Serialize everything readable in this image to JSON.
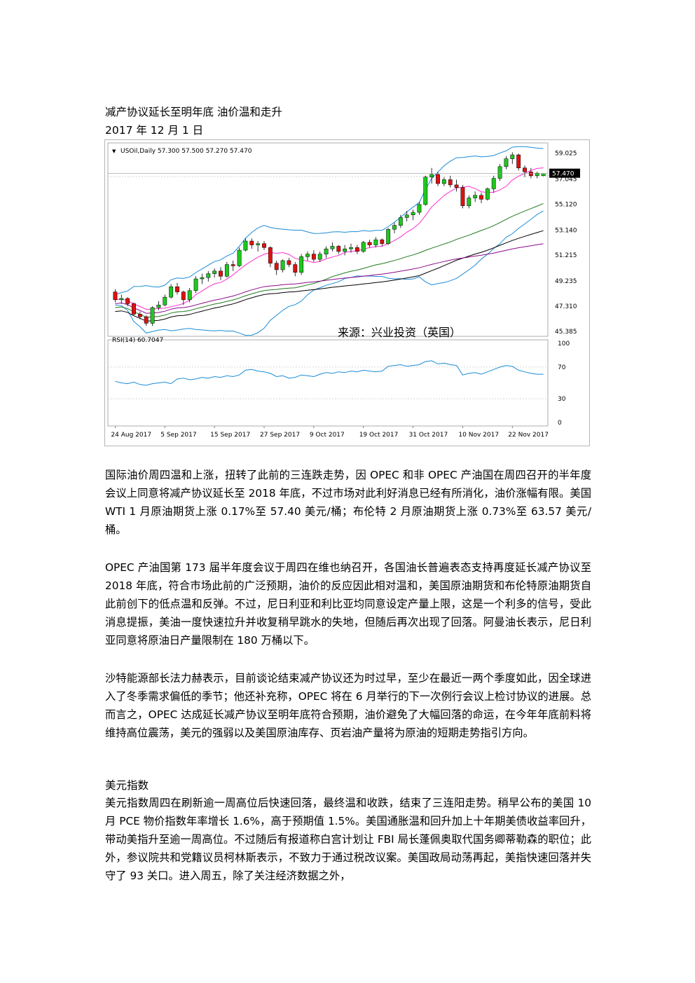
{
  "article": {
    "title": "减产协议延长至明年底  油价温和走升",
    "date": "2017 年 12 月 1 日",
    "paragraphs": [
      "国际油价周四温和上涨，扭转了此前的三连跌走势，因 OPEC 和非 OPEC 产油国在周四召开的半年度会议上同意将减产协议延长至 2018 年底，不过市场对此利好消息已经有所消化，油价涨幅有限。美国 WTI 1 月原油期货上涨 0.17%至 57.40 美元/桶；布伦特 2 月原油期货上涨 0.73%至 63.57 美元/桶。",
      "OPEC 产油国第 173 届半年度会议于周四在维也纳召开，各国油长普遍表态支持再度延长减产协议至 2018 年底，符合市场此前的广泛预期，油价的反应因此相对温和，美国原油期货和布伦特原油期货自此前创下的低点温和反弹。不过，尼日利亚和利比亚均同意设定产量上限，这是一个利多的信号，受此消息提振，美油一度快速拉升并收复稍早跳水的失地，但随后再次出现了回落。阿曼油长表示，尼日利亚同意将原油日产量限制在 180 万桶以下。",
      "沙特能源部长法力赫表示，目前谈论结束减产协议还为时过早，至少在最近一两个季度如此，因全球进入了冬季需求偏低的季节；他还补充称，OPEC 将在 6 月举行的下一次例行会议上检讨协议的进展。总而言之，OPEC 达成延长减产协议至明年底符合预期，油价避免了大幅回落的命运，在今年年底前料将维持高位震荡，美元的强弱以及美国原油库存、页岩油产量将为原油的短期走势指引方向。"
    ],
    "section2_title": "美元指数",
    "section2_paragraph": "美元指数周四在刷新逾一周高位后快速回落，最终温和收跌，结束了三连阳走势。稍早公布的美国 10 月 PCE 物价指数年率增长 1.6%，高于预期值 1.5%。美国通胀温和回升加上十年期美债收益率回升，带动美指升至逾一周高位。不过随后有报道称白宫计划让 FBI 局长蓬佩奥取代国务卿蒂勒森的职位；此外，参议院共和党籍议员柯林斯表示，不致力于通过税改议案。美国政局动荡再起，美指快速回落并失守了 93 关口。进入周五，除了关注经济数据之外，"
  },
  "chart_data": {
    "type": "candlestick",
    "symbol_label": "USOil,Daily  57.300 57.500 57.270 57.470",
    "current_price_label": "57.470",
    "watermark": "来源：兴业投资（英国）",
    "price_ticks": [
      "59.025",
      "57.045",
      "55.120",
      "53.140",
      "51.215",
      "49.235",
      "47.310",
      "45.385"
    ],
    "price_tick_values": [
      59.025,
      57.045,
      55.12,
      53.14,
      51.215,
      49.235,
      47.31,
      45.385
    ],
    "ylim": [
      45.0,
      59.6
    ],
    "x_labels": [
      "24 Aug 2017",
      "5 Sep 2017",
      "15 Sep 2017",
      "27 Sep 2017",
      "9 Oct 2017",
      "19 Oct 2017",
      "31 Oct 2017",
      "10 Nov 2017",
      "22 Nov 2017"
    ],
    "x_label_index": [
      0,
      8,
      16,
      24,
      32,
      40,
      48,
      56,
      64
    ],
    "candles": [
      [
        48.4,
        48.6,
        47.6,
        47.8
      ],
      [
        47.8,
        48.2,
        47.5,
        47.9
      ],
      [
        47.9,
        48.0,
        47.3,
        47.5
      ],
      [
        47.5,
        47.6,
        46.6,
        46.7
      ],
      [
        46.7,
        46.9,
        46.3,
        46.5
      ],
      [
        46.5,
        46.6,
        45.8,
        46.0
      ],
      [
        46.0,
        47.3,
        45.8,
        47.2
      ],
      [
        47.2,
        47.7,
        47.0,
        47.4
      ],
      [
        47.4,
        48.2,
        47.3,
        48.0
      ],
      [
        48.0,
        49.0,
        47.9,
        48.8
      ],
      [
        48.8,
        49.1,
        48.2,
        48.4
      ],
      [
        48.4,
        48.5,
        47.4,
        47.8
      ],
      [
        47.8,
        48.7,
        47.6,
        48.5
      ],
      [
        48.5,
        49.6,
        48.3,
        49.4
      ],
      [
        49.4,
        49.8,
        49.0,
        49.5
      ],
      [
        49.5,
        50.0,
        49.2,
        49.8
      ],
      [
        49.8,
        50.2,
        49.5,
        50.0
      ],
      [
        50.0,
        50.3,
        49.3,
        49.6
      ],
      [
        49.6,
        50.7,
        49.5,
        50.5
      ],
      [
        50.5,
        50.8,
        50.0,
        50.4
      ],
      [
        50.4,
        51.8,
        50.3,
        51.6
      ],
      [
        51.6,
        52.5,
        51.5,
        52.3
      ],
      [
        52.3,
        52.5,
        51.7,
        52.0
      ],
      [
        52.0,
        52.3,
        51.5,
        52.1
      ],
      [
        52.1,
        52.3,
        51.6,
        51.8
      ],
      [
        51.8,
        51.9,
        50.3,
        50.6
      ],
      [
        50.6,
        50.8,
        49.7,
        50.1
      ],
      [
        50.1,
        50.9,
        49.9,
        50.8
      ],
      [
        50.8,
        51.0,
        50.3,
        50.5
      ],
      [
        50.5,
        50.7,
        49.6,
        49.9
      ],
      [
        49.9,
        51.3,
        49.7,
        51.1
      ],
      [
        51.1,
        51.5,
        50.8,
        51.3
      ],
      [
        51.3,
        51.6,
        50.7,
        50.9
      ],
      [
        50.9,
        51.5,
        50.7,
        51.3
      ],
      [
        51.3,
        51.9,
        51.0,
        51.7
      ],
      [
        51.7,
        52.2,
        51.5,
        51.9
      ],
      [
        51.9,
        52.0,
        51.3,
        51.5
      ],
      [
        51.5,
        52.0,
        51.2,
        51.7
      ],
      [
        51.7,
        52.1,
        51.4,
        51.8
      ],
      [
        51.8,
        52.0,
        51.3,
        51.5
      ],
      [
        51.5,
        52.3,
        51.4,
        52.2
      ],
      [
        52.2,
        52.4,
        51.8,
        52.0
      ],
      [
        52.0,
        52.6,
        51.8,
        52.4
      ],
      [
        52.4,
        52.5,
        51.9,
        52.1
      ],
      [
        52.1,
        53.3,
        52.0,
        53.2
      ],
      [
        53.2,
        53.7,
        52.9,
        53.5
      ],
      [
        53.5,
        54.3,
        53.3,
        54.1
      ],
      [
        54.1,
        54.6,
        53.8,
        54.3
      ],
      [
        54.3,
        54.7,
        53.9,
        54.5
      ],
      [
        54.5,
        55.3,
        54.3,
        55.1
      ],
      [
        55.1,
        57.3,
        55.0,
        57.2
      ],
      [
        57.2,
        57.9,
        56.7,
        57.4
      ],
      [
        57.4,
        57.6,
        56.5,
        56.7
      ],
      [
        56.7,
        57.2,
        56.5,
        57.0
      ],
      [
        57.0,
        57.3,
        56.4,
        56.6
      ],
      [
        56.6,
        57.0,
        56.1,
        56.4
      ],
      [
        56.4,
        56.6,
        54.8,
        55.0
      ],
      [
        55.0,
        55.8,
        54.8,
        55.6
      ],
      [
        55.6,
        56.1,
        55.3,
        55.8
      ],
      [
        55.8,
        56.0,
        55.2,
        55.5
      ],
      [
        55.5,
        56.4,
        55.4,
        56.3
      ],
      [
        56.3,
        57.3,
        56.0,
        57.1
      ],
      [
        57.1,
        58.2,
        56.9,
        58.0
      ],
      [
        58.0,
        58.8,
        57.8,
        58.6
      ],
      [
        58.6,
        59.1,
        58.2,
        58.9
      ],
      [
        58.9,
        59.0,
        57.7,
        57.9
      ],
      [
        57.9,
        58.1,
        57.2,
        57.6
      ],
      [
        57.6,
        57.9,
        57.1,
        57.3
      ],
      [
        57.3,
        57.6,
        57.1,
        57.5
      ],
      [
        57.3,
        57.5,
        57.27,
        57.47
      ]
    ],
    "indicator_label": "RSI(14) 60.7047",
    "rsi_ticks": [
      "100",
      "70",
      "30",
      "0"
    ],
    "rsi_tick_values": [
      100,
      70,
      30,
      0
    ],
    "rsi_values": [
      52,
      50,
      49,
      51,
      48,
      47,
      49,
      50,
      51,
      49,
      55,
      56,
      54,
      55,
      57,
      56,
      58,
      57,
      59,
      58,
      60,
      66,
      67,
      65,
      64,
      62,
      58,
      59,
      56,
      57,
      60,
      59,
      58,
      61,
      63,
      62,
      64,
      63,
      65,
      64,
      66,
      65,
      64,
      65,
      71,
      72,
      73,
      71,
      72,
      73,
      77,
      78,
      74,
      75,
      73,
      72,
      60,
      62,
      63,
      61,
      64,
      67,
      70,
      72,
      71,
      66,
      64,
      62,
      61,
      61
    ],
    "colors": {
      "bull": "#1ec81e",
      "bear": "#e01010",
      "bands": "#1a8cd8",
      "ma_fast": "#ff2fcf",
      "ma_mid": "#1f7a1f",
      "ma_slow": "#000000",
      "ma_long": "#8b0a8b",
      "rsi": "#1a8cd8",
      "grid": "#c8c8c8"
    }
  }
}
